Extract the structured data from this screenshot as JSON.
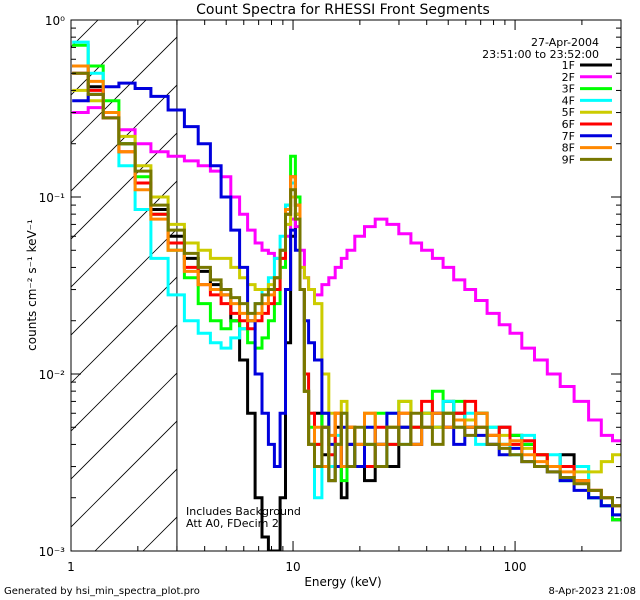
{
  "chart_data": {
    "type": "line",
    "title": "Count Spectra for RHESSI Front Segments",
    "xlabel": "Energy (keV)",
    "ylabel": "counts cm⁻² s⁻¹ keV⁻¹",
    "xscale": "log",
    "yscale": "log",
    "xlim": [
      1.0,
      300
    ],
    "ylim": [
      0.001,
      1.0
    ],
    "x_ticks": [
      {
        "value": 1,
        "label": "1"
      },
      {
        "value": 10,
        "label": "10"
      },
      {
        "value": 100,
        "label": "100"
      }
    ],
    "y_ticks": [
      {
        "value": 1,
        "label": "10⁰"
      },
      {
        "value": 0.1,
        "label": "10⁻¹"
      },
      {
        "value": 0.01,
        "label": "10⁻²"
      },
      {
        "value": 0.001,
        "label": "10⁻³"
      }
    ],
    "hatched_region": [
      1.0,
      3.0
    ],
    "date": "27-Apr-2004",
    "time_range": "23:51:00 to 23:52:00",
    "annotation_lines": [
      "Includes Background",
      "Att A0, FDecim 2"
    ],
    "series": [
      {
        "name": "1F",
        "color": "#000000",
        "x": [
          1.1,
          1.3,
          1.5,
          1.8,
          2.1,
          2.5,
          3.0,
          3.5,
          4.0,
          4.5,
          5.0,
          5.5,
          6.0,
          6.5,
          7.0,
          7.5,
          8.0,
          8.5,
          9.0,
          9.5,
          10.0,
          10.5,
          11.0,
          11.5,
          12.0,
          13.0,
          14.0,
          15.0,
          16.0,
          17.0,
          18.0,
          20.0,
          22.0,
          25.0,
          28.0,
          32.0,
          36.0,
          40.0,
          45.0,
          50.0,
          56.0,
          63.0,
          70.0,
          80.0,
          90.0,
          100.0,
          115.0,
          130.0,
          150.0,
          170.0,
          200.0,
          230.0,
          260.0,
          290.0
        ],
        "y": [
          0.55,
          0.42,
          0.3,
          0.2,
          0.12,
          0.085,
          0.06,
          0.045,
          0.038,
          0.032,
          0.028,
          0.02,
          0.012,
          0.006,
          0.002,
          0.0012,
          0.001,
          0.001,
          0.002,
          0.015,
          0.06,
          0.08,
          0.03,
          0.008,
          0.004,
          0.006,
          0.0035,
          0.0025,
          0.005,
          0.002,
          0.004,
          0.003,
          0.0025,
          0.004,
          0.003,
          0.005,
          0.004,
          0.006,
          0.005,
          0.007,
          0.006,
          0.005,
          0.006,
          0.004,
          0.005,
          0.0045,
          0.004,
          0.0035,
          0.003,
          0.0035,
          0.0025,
          0.002,
          0.0018,
          0.0015
        ]
      },
      {
        "name": "2F",
        "color": "#ff00ff",
        "x": [
          1.1,
          1.3,
          1.5,
          1.8,
          2.1,
          2.5,
          3.0,
          3.5,
          4.0,
          4.5,
          5.0,
          5.5,
          6.0,
          6.5,
          7.0,
          7.5,
          8.0,
          8.5,
          9.0,
          9.5,
          10.0,
          10.5,
          11.0,
          11.5,
          12.0,
          13.0,
          14.0,
          15.0,
          16.0,
          17.0,
          18.0,
          20.0,
          22.0,
          25.0,
          28.0,
          32.0,
          36.0,
          40.0,
          45.0,
          50.0,
          56.0,
          63.0,
          70.0,
          80.0,
          90.0,
          100.0,
          115.0,
          130.0,
          150.0,
          170.0,
          200.0,
          230.0,
          260.0,
          290.0
        ],
        "y": [
          0.3,
          0.32,
          0.28,
          0.24,
          0.2,
          0.18,
          0.17,
          0.16,
          0.15,
          0.14,
          0.13,
          0.1,
          0.08,
          0.065,
          0.055,
          0.05,
          0.048,
          0.045,
          0.05,
          0.06,
          0.075,
          0.068,
          0.05,
          0.035,
          0.03,
          0.028,
          0.032,
          0.035,
          0.04,
          0.045,
          0.05,
          0.06,
          0.068,
          0.075,
          0.07,
          0.062,
          0.055,
          0.05,
          0.045,
          0.04,
          0.034,
          0.03,
          0.026,
          0.022,
          0.019,
          0.017,
          0.014,
          0.012,
          0.01,
          0.0085,
          0.007,
          0.0055,
          0.0045,
          0.0042
        ]
      },
      {
        "name": "3F",
        "color": "#00ff00",
        "x": [
          1.1,
          1.3,
          1.5,
          1.8,
          2.1,
          2.5,
          3.0,
          3.5,
          4.0,
          4.5,
          5.0,
          5.5,
          6.0,
          6.5,
          7.0,
          7.5,
          8.0,
          8.5,
          9.0,
          9.5,
          10.0,
          10.5,
          11.0,
          11.5,
          12.0,
          13.0,
          14.0,
          15.0,
          16.0,
          17.0,
          18.0,
          20.0,
          22.0,
          25.0,
          28.0,
          32.0,
          36.0,
          40.0,
          45.0,
          50.0,
          56.0,
          63.0,
          70.0,
          80.0,
          90.0,
          100.0,
          115.0,
          130.0,
          150.0,
          170.0,
          200.0,
          230.0,
          260.0,
          290.0
        ],
        "y": [
          0.72,
          0.55,
          0.35,
          0.2,
          0.13,
          0.08,
          0.05,
          0.035,
          0.025,
          0.02,
          0.018,
          0.02,
          0.018,
          0.015,
          0.014,
          0.016,
          0.02,
          0.025,
          0.04,
          0.09,
          0.17,
          0.1,
          0.03,
          0.008,
          0.005,
          0.004,
          0.006,
          0.003,
          0.004,
          0.0025,
          0.005,
          0.003,
          0.004,
          0.006,
          0.004,
          0.007,
          0.005,
          0.006,
          0.008,
          0.006,
          0.007,
          0.005,
          0.006,
          0.005,
          0.004,
          0.0045,
          0.004,
          0.0035,
          0.003,
          0.0025,
          0.003,
          0.002,
          0.0018,
          0.0015
        ]
      },
      {
        "name": "4F",
        "color": "#00ffff",
        "x": [
          1.1,
          1.3,
          1.5,
          1.8,
          2.1,
          2.5,
          3.0,
          3.5,
          4.0,
          4.5,
          5.0,
          5.5,
          6.0,
          6.5,
          7.0,
          7.5,
          8.0,
          8.5,
          9.0,
          9.5,
          10.0,
          10.5,
          11.0,
          11.5,
          12.0,
          13.0,
          14.0,
          15.0,
          16.0,
          17.0,
          18.0,
          20.0,
          22.0,
          25.0,
          28.0,
          32.0,
          36.0,
          40.0,
          45.0,
          50.0,
          56.0,
          63.0,
          70.0,
          80.0,
          90.0,
          100.0,
          115.0,
          130.0,
          150.0,
          170.0,
          200.0,
          230.0,
          260.0,
          290.0
        ],
        "y": [
          0.75,
          0.5,
          0.3,
          0.15,
          0.085,
          0.045,
          0.028,
          0.02,
          0.017,
          0.015,
          0.014,
          0.016,
          0.018,
          0.02,
          0.025,
          0.03,
          0.035,
          0.045,
          0.06,
          0.09,
          0.12,
          0.09,
          0.03,
          0.01,
          0.004,
          0.002,
          0.005,
          0.003,
          0.0045,
          0.006,
          0.003,
          0.004,
          0.005,
          0.003,
          0.006,
          0.004,
          0.005,
          0.006,
          0.005,
          0.007,
          0.005,
          0.006,
          0.004,
          0.005,
          0.004,
          0.0035,
          0.0045,
          0.003,
          0.0035,
          0.0025,
          0.003,
          0.002,
          0.0018,
          0.0016
        ]
      },
      {
        "name": "5F",
        "color": "#cccc00",
        "x": [
          1.1,
          1.3,
          1.5,
          1.8,
          2.1,
          2.5,
          3.0,
          3.5,
          4.0,
          4.5,
          5.0,
          5.5,
          6.0,
          6.5,
          7.0,
          7.5,
          8.0,
          8.5,
          9.0,
          9.5,
          10.0,
          10.5,
          11.0,
          11.5,
          12.0,
          13.0,
          14.0,
          15.0,
          16.0,
          17.0,
          18.0,
          20.0,
          22.0,
          25.0,
          28.0,
          32.0,
          36.0,
          40.0,
          45.0,
          50.0,
          56.0,
          63.0,
          70.0,
          80.0,
          90.0,
          100.0,
          115.0,
          130.0,
          150.0,
          170.0,
          200.0,
          230.0,
          260.0,
          290.0
        ],
        "y": [
          0.4,
          0.35,
          0.3,
          0.22,
          0.15,
          0.1,
          0.07,
          0.055,
          0.05,
          0.045,
          0.045,
          0.04,
          0.035,
          0.032,
          0.03,
          0.03,
          0.032,
          0.035,
          0.045,
          0.07,
          0.1,
          0.08,
          0.04,
          0.035,
          0.03,
          0.025,
          0.01,
          0.006,
          0.004,
          0.007,
          0.005,
          0.003,
          0.006,
          0.004,
          0.005,
          0.007,
          0.005,
          0.006,
          0.005,
          0.006,
          0.005,
          0.0055,
          0.005,
          0.0045,
          0.0045,
          0.004,
          0.0038,
          0.0035,
          0.003,
          0.003,
          0.0028,
          0.0028,
          0.0032,
          0.0035
        ]
      },
      {
        "name": "6F",
        "color": "#ff0000",
        "x": [
          1.1,
          1.3,
          1.5,
          1.8,
          2.1,
          2.5,
          3.0,
          3.5,
          4.0,
          4.5,
          5.0,
          5.5,
          6.0,
          6.5,
          7.0,
          7.5,
          8.0,
          8.5,
          9.0,
          9.5,
          10.0,
          10.5,
          11.0,
          11.5,
          12.0,
          13.0,
          14.0,
          15.0,
          16.0,
          17.0,
          18.0,
          20.0,
          22.0,
          25.0,
          28.0,
          32.0,
          36.0,
          40.0,
          45.0,
          50.0,
          56.0,
          63.0,
          70.0,
          80.0,
          90.0,
          100.0,
          115.0,
          130.0,
          150.0,
          170.0,
          200.0,
          230.0,
          260.0,
          290.0
        ],
        "y": [
          0.5,
          0.4,
          0.28,
          0.18,
          0.12,
          0.08,
          0.055,
          0.04,
          0.032,
          0.028,
          0.025,
          0.022,
          0.02,
          0.018,
          0.02,
          0.022,
          0.025,
          0.03,
          0.045,
          0.08,
          0.13,
          0.09,
          0.03,
          0.01,
          0.006,
          0.004,
          0.005,
          0.0035,
          0.006,
          0.003,
          0.005,
          0.004,
          0.003,
          0.005,
          0.004,
          0.006,
          0.005,
          0.007,
          0.006,
          0.005,
          0.006,
          0.007,
          0.005,
          0.0045,
          0.005,
          0.004,
          0.0042,
          0.0035,
          0.003,
          0.003,
          0.0025,
          0.0022,
          0.002,
          0.0018
        ]
      },
      {
        "name": "7F",
        "color": "#0000dd",
        "x": [
          1.1,
          1.3,
          1.5,
          1.8,
          2.1,
          2.5,
          3.0,
          3.5,
          4.0,
          4.5,
          5.0,
          5.5,
          6.0,
          6.5,
          7.0,
          7.5,
          8.0,
          8.5,
          9.0,
          9.5,
          10.0,
          10.5,
          11.0,
          11.5,
          12.0,
          13.0,
          14.0,
          15.0,
          16.0,
          17.0,
          18.0,
          20.0,
          22.0,
          25.0,
          28.0,
          32.0,
          36.0,
          40.0,
          45.0,
          50.0,
          56.0,
          63.0,
          70.0,
          80.0,
          90.0,
          100.0,
          115.0,
          130.0,
          150.0,
          170.0,
          200.0,
          230.0,
          260.0,
          290.0
        ],
        "y": [
          0.35,
          0.38,
          0.42,
          0.44,
          0.41,
          0.37,
          0.31,
          0.25,
          0.2,
          0.15,
          0.1,
          0.065,
          0.04,
          0.02,
          0.01,
          0.006,
          0.004,
          0.003,
          0.006,
          0.03,
          0.065,
          0.05,
          0.03,
          0.02,
          0.015,
          0.012,
          0.006,
          0.004,
          0.003,
          0.005,
          0.004,
          0.003,
          0.005,
          0.004,
          0.006,
          0.005,
          0.004,
          0.005,
          0.006,
          0.005,
          0.004,
          0.005,
          0.0045,
          0.004,
          0.0035,
          0.0038,
          0.0032,
          0.003,
          0.0028,
          0.0025,
          0.0022,
          0.002,
          0.0018,
          0.0016
        ]
      },
      {
        "name": "8F",
        "color": "#ff8800",
        "x": [
          1.1,
          1.3,
          1.5,
          1.8,
          2.1,
          2.5,
          3.0,
          3.5,
          4.0,
          4.5,
          5.0,
          5.5,
          6.0,
          6.5,
          7.0,
          7.5,
          8.0,
          8.5,
          9.0,
          9.5,
          10.0,
          10.5,
          11.0,
          11.5,
          12.0,
          13.0,
          14.0,
          15.0,
          16.0,
          17.0,
          18.0,
          20.0,
          22.0,
          25.0,
          28.0,
          32.0,
          36.0,
          40.0,
          45.0,
          50.0,
          56.0,
          63.0,
          70.0,
          80.0,
          90.0,
          100.0,
          115.0,
          130.0,
          150.0,
          170.0,
          200.0,
          230.0,
          260.0,
          290.0
        ],
        "y": [
          0.55,
          0.45,
          0.3,
          0.18,
          0.11,
          0.075,
          0.05,
          0.038,
          0.032,
          0.03,
          0.028,
          0.025,
          0.022,
          0.02,
          0.022,
          0.025,
          0.028,
          0.035,
          0.05,
          0.085,
          0.13,
          0.09,
          0.03,
          0.008,
          0.004,
          0.005,
          0.003,
          0.0045,
          0.006,
          0.003,
          0.005,
          0.004,
          0.006,
          0.004,
          0.005,
          0.006,
          0.004,
          0.005,
          0.006,
          0.005,
          0.0055,
          0.005,
          0.006,
          0.0045,
          0.004,
          0.0042,
          0.0035,
          0.0032,
          0.003,
          0.0028,
          0.0025,
          0.0022,
          0.002,
          0.0018
        ]
      },
      {
        "name": "9F",
        "color": "#777700",
        "x": [
          1.1,
          1.3,
          1.5,
          1.8,
          2.1,
          2.5,
          3.0,
          3.5,
          4.0,
          4.5,
          5.0,
          5.5,
          6.0,
          6.5,
          7.0,
          7.5,
          8.0,
          8.5,
          9.0,
          9.5,
          10.0,
          10.5,
          11.0,
          11.5,
          12.0,
          13.0,
          14.0,
          15.0,
          16.0,
          17.0,
          18.0,
          20.0,
          22.0,
          25.0,
          28.0,
          32.0,
          36.0,
          40.0,
          45.0,
          50.0,
          56.0,
          63.0,
          70.0,
          80.0,
          90.0,
          100.0,
          115.0,
          130.0,
          150.0,
          170.0,
          200.0,
          230.0,
          260.0,
          290.0
        ],
        "y": [
          0.5,
          0.38,
          0.28,
          0.2,
          0.14,
          0.09,
          0.065,
          0.048,
          0.04,
          0.034,
          0.03,
          0.027,
          0.025,
          0.022,
          0.025,
          0.028,
          0.03,
          0.035,
          0.05,
          0.08,
          0.11,
          0.075,
          0.03,
          0.008,
          0.004,
          0.003,
          0.005,
          0.0025,
          0.004,
          0.006,
          0.003,
          0.005,
          0.004,
          0.003,
          0.005,
          0.004,
          0.006,
          0.005,
          0.004,
          0.006,
          0.005,
          0.0045,
          0.005,
          0.004,
          0.0038,
          0.0035,
          0.0032,
          0.003,
          0.0028,
          0.0026,
          0.0024,
          0.0022,
          0.002,
          0.0018
        ]
      }
    ]
  },
  "footer": {
    "generated_by": "Generated by hsi_min_spectra_plot.pro",
    "timestamp": "8-Apr-2023 21:08"
  }
}
